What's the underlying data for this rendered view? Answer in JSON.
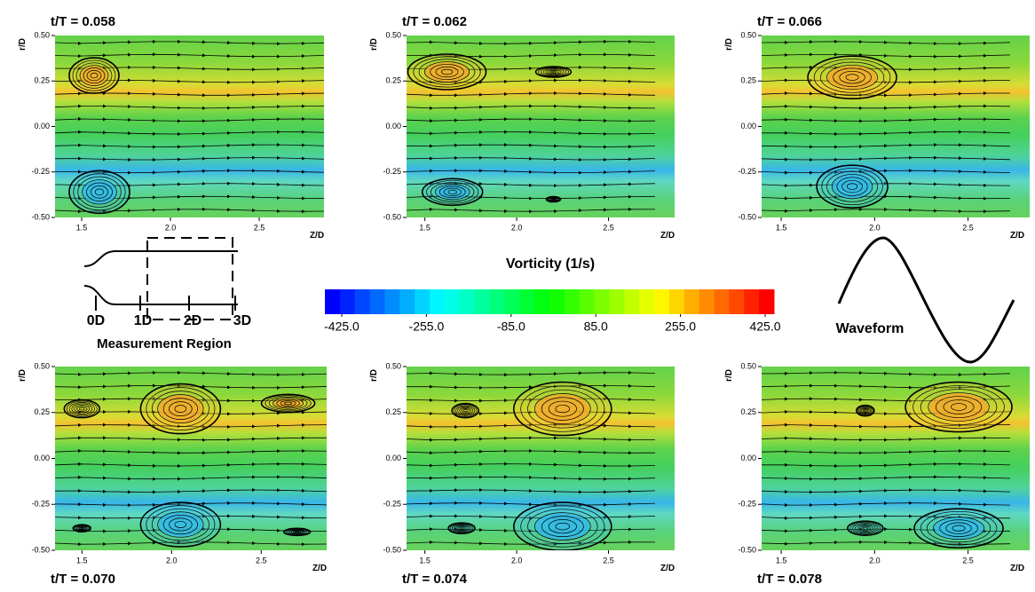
{
  "panels": [
    {
      "title": "t/T = 0.058",
      "xlabel": "Z/D",
      "ylabel": "r/D",
      "xlim": [
        1.35,
        2.865
      ],
      "ylim": [
        -0.5,
        0.5
      ],
      "xticks": [
        {
          "value": 1.5,
          "label": "1.5"
        },
        {
          "value": 2.0,
          "label": "2.0"
        },
        {
          "value": 2.5,
          "label": "2.5"
        }
      ],
      "yticks": [
        {
          "value": 0.5,
          "label": "0.50"
        },
        {
          "value": 0.25,
          "label": "0.25"
        },
        {
          "value": 0,
          "label": "0.00"
        },
        {
          "value": -0.25,
          "label": "-0.25"
        },
        {
          "value": -0.5,
          "label": "-0.50"
        }
      ]
    },
    {
      "title": "t/T = 0.062",
      "xlabel": "Z/D",
      "ylabel": "r/D",
      "xlim": [
        1.4,
        2.86
      ],
      "ylim": [
        -0.5,
        0.5
      ],
      "xticks": [
        {
          "value": 1.5,
          "label": "1.5"
        },
        {
          "value": 2.0,
          "label": "2.0"
        },
        {
          "value": 2.5,
          "label": "2.5"
        }
      ],
      "yticks": [
        {
          "value": 0.5,
          "label": "0.50"
        },
        {
          "value": 0.25,
          "label": "0.25"
        },
        {
          "value": 0,
          "label": "0.00"
        },
        {
          "value": -0.25,
          "label": "-0.25"
        },
        {
          "value": -0.5,
          "label": "-0.50"
        }
      ]
    },
    {
      "title": "t/T = 0.066",
      "xlabel": "Z/D",
      "ylabel": "r/D",
      "xlim": [
        1.395,
        2.83
      ],
      "ylim": [
        -0.5,
        0.5
      ],
      "xticks": [
        {
          "value": 1.5,
          "label": "1.5"
        },
        {
          "value": 2.0,
          "label": "2.0"
        },
        {
          "value": 2.5,
          "label": "2.5"
        }
      ],
      "yticks": [
        {
          "value": 0.5,
          "label": "0.50"
        },
        {
          "value": 0.25,
          "label": "0.25"
        },
        {
          "value": 0,
          "label": "0.00"
        },
        {
          "value": -0.25,
          "label": "-0.25"
        },
        {
          "value": -0.5,
          "label": "-0.50"
        }
      ]
    },
    {
      "title": "t/T = 0.070",
      "xlabel": "Z/D",
      "ylabel": "r/D",
      "xlim": [
        1.35,
        2.865
      ],
      "ylim": [
        -0.5,
        0.5
      ],
      "xticks": [
        {
          "value": 1.5,
          "label": "1.5"
        },
        {
          "value": 2.0,
          "label": "2.0"
        },
        {
          "value": 2.5,
          "label": "2.5"
        }
      ],
      "yticks": [
        {
          "value": 0.5,
          "label": "0.50"
        },
        {
          "value": 0.25,
          "label": "0.25"
        },
        {
          "value": 0,
          "label": "0.00"
        },
        {
          "value": -0.25,
          "label": "-0.25"
        },
        {
          "value": -0.5,
          "label": "-0.50"
        }
      ]
    },
    {
      "title": "t/T = 0.074",
      "xlabel": "Z/D",
      "ylabel": "r/D",
      "xlim": [
        1.4,
        2.86
      ],
      "ylim": [
        -0.5,
        0.5
      ],
      "xticks": [
        {
          "value": 1.5,
          "label": "1.5"
        },
        {
          "value": 2.0,
          "label": "2.0"
        },
        {
          "value": 2.5,
          "label": "2.5"
        }
      ],
      "yticks": [
        {
          "value": 0.5,
          "label": "0.50"
        },
        {
          "value": 0.25,
          "label": "0.25"
        },
        {
          "value": 0,
          "label": "0.00"
        },
        {
          "value": -0.25,
          "label": "-0.25"
        },
        {
          "value": -0.5,
          "label": "-0.50"
        }
      ]
    },
    {
      "title": "t/T = 0.078",
      "xlabel": "Z/D",
      "ylabel": "r/D",
      "xlim": [
        1.395,
        2.83
      ],
      "ylim": [
        -0.5,
        0.5
      ],
      "xticks": [
        {
          "value": 1.5,
          "label": "1.5"
        },
        {
          "value": 2.0,
          "label": "2.0"
        },
        {
          "value": 2.5,
          "label": "2.5"
        }
      ],
      "yticks": [
        {
          "value": 0.5,
          "label": "0.50"
        },
        {
          "value": 0.25,
          "label": "0.25"
        },
        {
          "value": 0,
          "label": "0.00"
        },
        {
          "value": -0.25,
          "label": "-0.25"
        },
        {
          "value": -0.5,
          "label": "-0.50"
        }
      ]
    }
  ],
  "colorbar": {
    "title": "Vorticity (1/s)",
    "ticks": [
      {
        "value": -425,
        "label": "-425.0"
      },
      {
        "value": -255,
        "label": "-255.0"
      },
      {
        "value": -85,
        "label": "-85.0"
      },
      {
        "value": 85,
        "label": "85.0"
      },
      {
        "value": 255,
        "label": "255.0"
      },
      {
        "value": 425,
        "label": "425.0"
      }
    ]
  },
  "schematic": {
    "labels": [
      "0D",
      "1D",
      "2D",
      "3D"
    ],
    "caption": "Measurement Region"
  },
  "waveform": {
    "label": "Waveform"
  }
}
